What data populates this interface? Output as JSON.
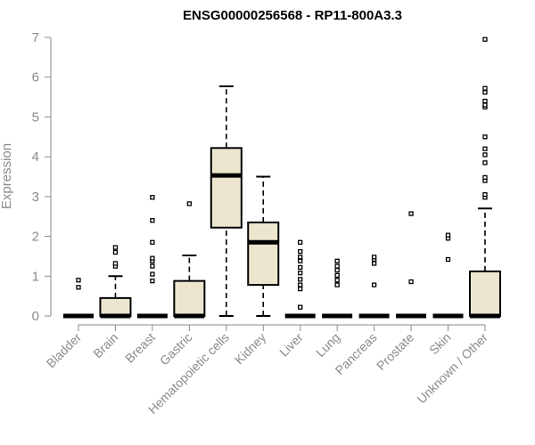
{
  "chart_data": {
    "type": "boxplot",
    "title": "ENSG00000256568 - RP11-800A3.3",
    "ylabel": "Expression",
    "ylim": [
      0,
      7
    ],
    "yticks": [
      "0",
      "1",
      "2",
      "3",
      "4",
      "5",
      "6",
      "7"
    ],
    "box_color": "#ede6cf",
    "categories": [
      "Bladder",
      "Brain",
      "Breast",
      "Gastric",
      "Hematopoietic cells",
      "Kidney",
      "Liver",
      "Lung",
      "Pancreas",
      "Prostate",
      "Skin",
      "Unknown / Other"
    ],
    "boxes": [
      {
        "min": 0,
        "q1": 0,
        "median": 0,
        "q3": 0,
        "max": 0,
        "outliers": [
          0.72,
          0.9
        ]
      },
      {
        "min": 0,
        "q1": 0,
        "median": 0,
        "q3": 0.45,
        "max": 1.0,
        "outliers": [
          1.25,
          1.32,
          1.6,
          1.72
        ]
      },
      {
        "min": 0,
        "q1": 0,
        "median": 0,
        "q3": 0,
        "max": 0,
        "outliers": [
          0.88,
          1.05,
          1.25,
          1.38,
          1.45,
          1.85,
          2.4,
          2.98
        ]
      },
      {
        "min": 0,
        "q1": 0,
        "median": 0,
        "q3": 0.88,
        "max": 1.52,
        "outliers": [
          2.82
        ]
      },
      {
        "min": 0,
        "q1": 2.22,
        "median": 3.53,
        "q3": 4.22,
        "max": 5.77,
        "outliers": []
      },
      {
        "min": 0,
        "q1": 0.78,
        "median": 1.85,
        "q3": 2.35,
        "max": 3.5,
        "outliers": []
      },
      {
        "min": 0,
        "q1": 0,
        "median": 0,
        "q3": 0,
        "max": 0,
        "outliers": [
          0.22,
          0.68,
          0.78,
          0.92,
          1.08,
          1.22,
          1.38,
          1.48,
          1.62,
          1.85
        ]
      },
      {
        "min": 0,
        "q1": 0,
        "median": 0,
        "q3": 0,
        "max": 0,
        "outliers": [
          0.78,
          0.9,
          1.02,
          1.15,
          1.25,
          1.38
        ]
      },
      {
        "min": 0,
        "q1": 0,
        "median": 0,
        "q3": 0,
        "max": 0,
        "outliers": [
          0.78,
          1.32,
          1.42,
          1.48
        ]
      },
      {
        "min": 0,
        "q1": 0,
        "median": 0,
        "q3": 0,
        "max": 0,
        "outliers": [
          0.86,
          2.57
        ]
      },
      {
        "min": 0,
        "q1": 0,
        "median": 0,
        "q3": 0,
        "max": 0,
        "outliers": [
          1.42,
          1.95,
          2.03
        ]
      },
      {
        "min": 0,
        "q1": 0,
        "median": 0,
        "q3": 1.12,
        "max": 2.7,
        "outliers": [
          2.98,
          3.05,
          3.4,
          3.48,
          3.85,
          4.05,
          4.2,
          4.5,
          5.25,
          5.3,
          5.4,
          5.62,
          5.72,
          6.95
        ]
      }
    ]
  }
}
